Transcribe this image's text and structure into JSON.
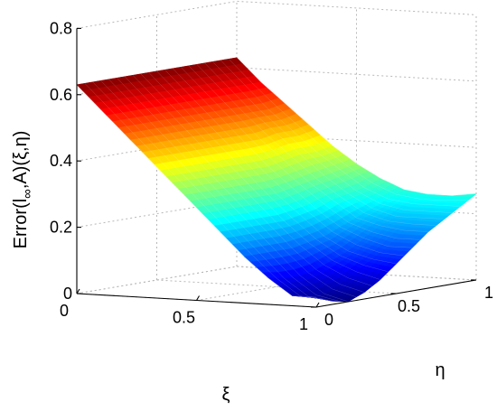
{
  "chart_data": {
    "type": "surface",
    "title": "",
    "xlabel": "ξ",
    "ylabel": "η",
    "zlabel": "Error(l∞,A)(ξ,η)",
    "xlim": [
      0,
      1
    ],
    "ylim": [
      0,
      1
    ],
    "zlim": [
      0,
      0.8
    ],
    "x_ticks": [
      "0",
      "0.5",
      "1"
    ],
    "y_ticks": [
      "0",
      "0.5",
      "1"
    ],
    "z_ticks": [
      "0",
      "0.2",
      "0.4",
      "0.6",
      "0.8"
    ],
    "grid": true,
    "colormap": "jet",
    "x": [
      0,
      0.1,
      0.2,
      0.3,
      0.4,
      0.5,
      0.6,
      0.7,
      0.8,
      0.9,
      1
    ],
    "y": [
      0,
      0.1,
      0.2,
      0.3,
      0.4,
      0.5,
      0.6,
      0.7,
      0.8,
      0.9,
      1
    ],
    "z_rows_by_y": [
      [
        0.63,
        0.56,
        0.49,
        0.42,
        0.35,
        0.28,
        0.21,
        0.14,
        0.08,
        0.03,
        0.03
      ],
      [
        0.63,
        0.56,
        0.49,
        0.42,
        0.35,
        0.28,
        0.21,
        0.14,
        0.07,
        0.02,
        0.01
      ],
      [
        0.63,
        0.56,
        0.49,
        0.42,
        0.35,
        0.28,
        0.21,
        0.14,
        0.07,
        0.02,
        0.0
      ],
      [
        0.63,
        0.56,
        0.49,
        0.42,
        0.35,
        0.28,
        0.21,
        0.14,
        0.08,
        0.04,
        0.02
      ],
      [
        0.63,
        0.56,
        0.49,
        0.42,
        0.35,
        0.28,
        0.21,
        0.15,
        0.1,
        0.07,
        0.05
      ],
      [
        0.63,
        0.56,
        0.49,
        0.42,
        0.35,
        0.28,
        0.22,
        0.16,
        0.12,
        0.1,
        0.09
      ],
      [
        0.63,
        0.56,
        0.49,
        0.42,
        0.35,
        0.29,
        0.23,
        0.18,
        0.15,
        0.13,
        0.13
      ],
      [
        0.63,
        0.56,
        0.49,
        0.42,
        0.36,
        0.3,
        0.25,
        0.2,
        0.18,
        0.17,
        0.17
      ],
      [
        0.63,
        0.56,
        0.49,
        0.43,
        0.37,
        0.31,
        0.26,
        0.22,
        0.2,
        0.2,
        0.2
      ],
      [
        0.63,
        0.56,
        0.49,
        0.43,
        0.37,
        0.32,
        0.27,
        0.24,
        0.23,
        0.23,
        0.23
      ],
      [
        0.63,
        0.56,
        0.5,
        0.44,
        0.38,
        0.33,
        0.29,
        0.26,
        0.25,
        0.25,
        0.26
      ]
    ]
  }
}
